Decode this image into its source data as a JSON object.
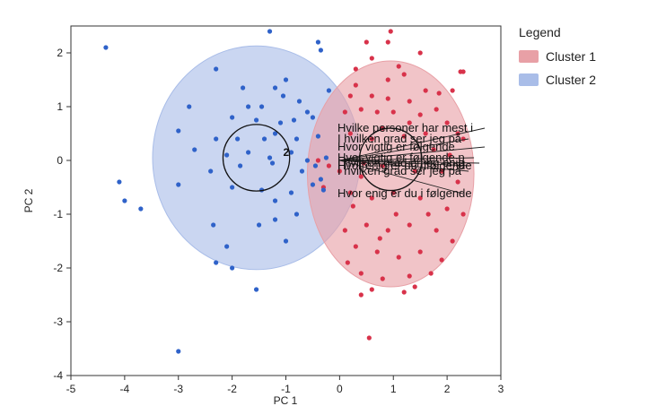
{
  "chart_data": {
    "type": "scatter",
    "title": "",
    "xlabel": "PC 1",
    "ylabel": "PC 2",
    "xlim": [
      -5,
      3
    ],
    "ylim": [
      -4,
      2.5
    ],
    "xticks": [
      -5,
      -4,
      -3,
      -2,
      -1,
      0,
      1,
      2,
      3
    ],
    "yticks": [
      -4,
      -3,
      -2,
      -1,
      0,
      1,
      2
    ],
    "legend": {
      "title": "Legend",
      "placement": "right",
      "entries": [
        {
          "name": "Cluster 1",
          "color": "#e8a0a6"
        },
        {
          "name": "Cluster 2",
          "color": "#a9bde8"
        }
      ]
    },
    "series": [
      {
        "name": "Cluster 1",
        "color": "#d8324a",
        "fill": "#e8a0a6",
        "ellipse": {
          "cx": 0.95,
          "cy": -0.25,
          "rx": 1.55,
          "ry": 2.1
        },
        "center_circle": {
          "cx": 0.95,
          "cy": 0.02,
          "r": 0.58
        },
        "points": [
          [
            0.5,
            2.2
          ],
          [
            0.9,
            2.2
          ],
          [
            0.6,
            1.9
          ],
          [
            1.5,
            2.0
          ],
          [
            1.2,
            1.6
          ],
          [
            0.9,
            1.5
          ],
          [
            1.6,
            1.3
          ],
          [
            2.1,
            1.3
          ],
          [
            2.25,
            1.65
          ],
          [
            2.3,
            1.65
          ],
          [
            0.3,
            1.4
          ],
          [
            0.2,
            1.2
          ],
          [
            0.6,
            1.2
          ],
          [
            0.9,
            1.15
          ],
          [
            1.3,
            1.1
          ],
          [
            1.85,
            1.25
          ],
          [
            0.1,
            0.9
          ],
          [
            0.4,
            0.95
          ],
          [
            0.7,
            0.9
          ],
          [
            1.0,
            0.9
          ],
          [
            1.5,
            0.85
          ],
          [
            1.8,
            0.95
          ],
          [
            2.0,
            0.7
          ],
          [
            2.2,
            0.5
          ],
          [
            0.2,
            0.5
          ],
          [
            0.6,
            0.4
          ],
          [
            0.8,
            0.6
          ],
          [
            1.2,
            0.45
          ],
          [
            1.6,
            0.5
          ],
          [
            2.3,
            0.4
          ],
          [
            -0.4,
            0.0
          ],
          [
            -0.2,
            -0.1
          ],
          [
            0.0,
            -0.2
          ],
          [
            0.4,
            -0.3
          ],
          [
            0.8,
            -0.1
          ],
          [
            1.4,
            -0.2
          ],
          [
            1.9,
            -0.2
          ],
          [
            2.2,
            -0.4
          ],
          [
            -0.3,
            -0.5
          ],
          [
            0.2,
            -0.6
          ],
          [
            0.6,
            -0.7
          ],
          [
            1.0,
            -0.6
          ],
          [
            1.5,
            -0.7
          ],
          [
            2.0,
            -0.9
          ],
          [
            2.3,
            -1.0
          ],
          [
            0.1,
            -1.3
          ],
          [
            0.5,
            -1.2
          ],
          [
            0.9,
            -1.3
          ],
          [
            1.3,
            -1.2
          ],
          [
            1.8,
            -1.3
          ],
          [
            2.1,
            -1.5
          ],
          [
            0.3,
            -1.6
          ],
          [
            0.7,
            -1.7
          ],
          [
            1.1,
            -1.8
          ],
          [
            1.5,
            -1.7
          ],
          [
            1.9,
            -1.85
          ],
          [
            0.4,
            -2.1
          ],
          [
            0.8,
            -2.2
          ],
          [
            1.3,
            -2.15
          ],
          [
            1.7,
            -2.1
          ],
          [
            0.6,
            -2.4
          ],
          [
            1.4,
            -2.35
          ],
          [
            0.4,
            -2.5
          ],
          [
            0.55,
            -3.3
          ],
          [
            1.1,
            1.75
          ],
          [
            0.3,
            1.7
          ],
          [
            2.05,
            0.1
          ],
          [
            1.75,
            0.2
          ],
          [
            1.3,
            0.7
          ],
          [
            0.45,
            -0.05
          ],
          [
            0.25,
            -0.85
          ],
          [
            1.65,
            -1.0
          ],
          [
            1.05,
            -1.0
          ],
          [
            0.75,
            -1.45
          ],
          [
            0.15,
            -1.9
          ],
          [
            1.2,
            -2.45
          ],
          [
            0.95,
            2.4
          ]
        ]
      },
      {
        "name": "Cluster 2",
        "color": "#2f62c9",
        "fill": "#a9bde8",
        "ellipse": {
          "cx": -1.55,
          "cy": 0.05,
          "rx": 1.93,
          "ry": 2.08
        },
        "center_circle": {
          "cx": -1.55,
          "cy": 0.05,
          "r": 0.62
        },
        "points": [
          [
            -4.35,
            2.1
          ],
          [
            -1.3,
            2.4
          ],
          [
            -0.4,
            2.2
          ],
          [
            -0.35,
            2.05
          ],
          [
            -2.3,
            1.7
          ],
          [
            -1.0,
            1.5
          ],
          [
            -1.8,
            1.35
          ],
          [
            -1.2,
            1.35
          ],
          [
            -2.8,
            1.0
          ],
          [
            -1.7,
            1.0
          ],
          [
            -1.45,
            1.0
          ],
          [
            -0.75,
            1.1
          ],
          [
            -0.6,
            0.9
          ],
          [
            -2.0,
            0.8
          ],
          [
            -1.55,
            0.75
          ],
          [
            -1.1,
            0.7
          ],
          [
            -0.85,
            0.75
          ],
          [
            -0.5,
            0.8
          ],
          [
            -3.0,
            0.55
          ],
          [
            -2.3,
            0.4
          ],
          [
            -1.9,
            0.4
          ],
          [
            -1.4,
            0.4
          ],
          [
            -1.2,
            0.5
          ],
          [
            -0.8,
            0.4
          ],
          [
            -0.4,
            0.45
          ],
          [
            -2.7,
            0.2
          ],
          [
            -2.1,
            0.1
          ],
          [
            -1.7,
            0.15
          ],
          [
            -1.3,
            0.05
          ],
          [
            -0.9,
            0.15
          ],
          [
            -0.6,
            0.0
          ],
          [
            -0.25,
            0.05
          ],
          [
            -2.4,
            -0.2
          ],
          [
            -1.85,
            -0.1
          ],
          [
            -1.25,
            -0.05
          ],
          [
            -0.7,
            -0.2
          ],
          [
            -0.35,
            -0.35
          ],
          [
            -3.0,
            -0.45
          ],
          [
            -2.0,
            -0.5
          ],
          [
            -1.45,
            -0.55
          ],
          [
            -1.2,
            -0.75
          ],
          [
            -0.9,
            -0.6
          ],
          [
            -0.5,
            -0.45
          ],
          [
            -4.1,
            -0.4
          ],
          [
            -4.0,
            -0.75
          ],
          [
            -3.7,
            -0.9
          ],
          [
            -2.35,
            -1.2
          ],
          [
            -1.5,
            -1.2
          ],
          [
            -1.2,
            -1.1
          ],
          [
            -0.8,
            -1.0
          ],
          [
            -2.1,
            -1.6
          ],
          [
            -1.0,
            -1.5
          ],
          [
            -2.3,
            -1.9
          ],
          [
            -2.0,
            -2.0
          ],
          [
            -1.55,
            -2.4
          ],
          [
            -3.0,
            -3.55
          ],
          [
            -0.3,
            -0.55
          ],
          [
            -0.45,
            -0.1
          ],
          [
            -1.05,
            1.2
          ],
          [
            -0.2,
            1.3
          ]
        ]
      }
    ],
    "loading_vectors": [
      {
        "label": "Hvilke personer har mest i",
        "x": 2.7,
        "y": 0.6
      },
      {
        "label": "I hvilken grad ser jeg på",
        "x": 2.4,
        "y": 0.4
      },
      {
        "label": "Hvor vigtig er følgende",
        "x": 2.7,
        "y": 0.25
      },
      {
        "label": "Hvor vigtig er følgende p",
        "x": 2.5,
        "y": 0.05
      },
      {
        "label": "I hvilken grad er jeg enig",
        "x": 2.6,
        "y": -0.05
      },
      {
        "label": "Hvor enig er du i følgende",
        "x": 2.45,
        "y": -0.1
      },
      {
        "label": "I hvilken grad ser jeg på",
        "x": 2.4,
        "y": -0.2
      },
      {
        "label": "Hvor enig er du i følgende",
        "x": 2.3,
        "y": -0.62
      }
    ],
    "cluster_labels": [
      {
        "label": "2",
        "x": -1.05,
        "y": 0.15
      }
    ]
  }
}
